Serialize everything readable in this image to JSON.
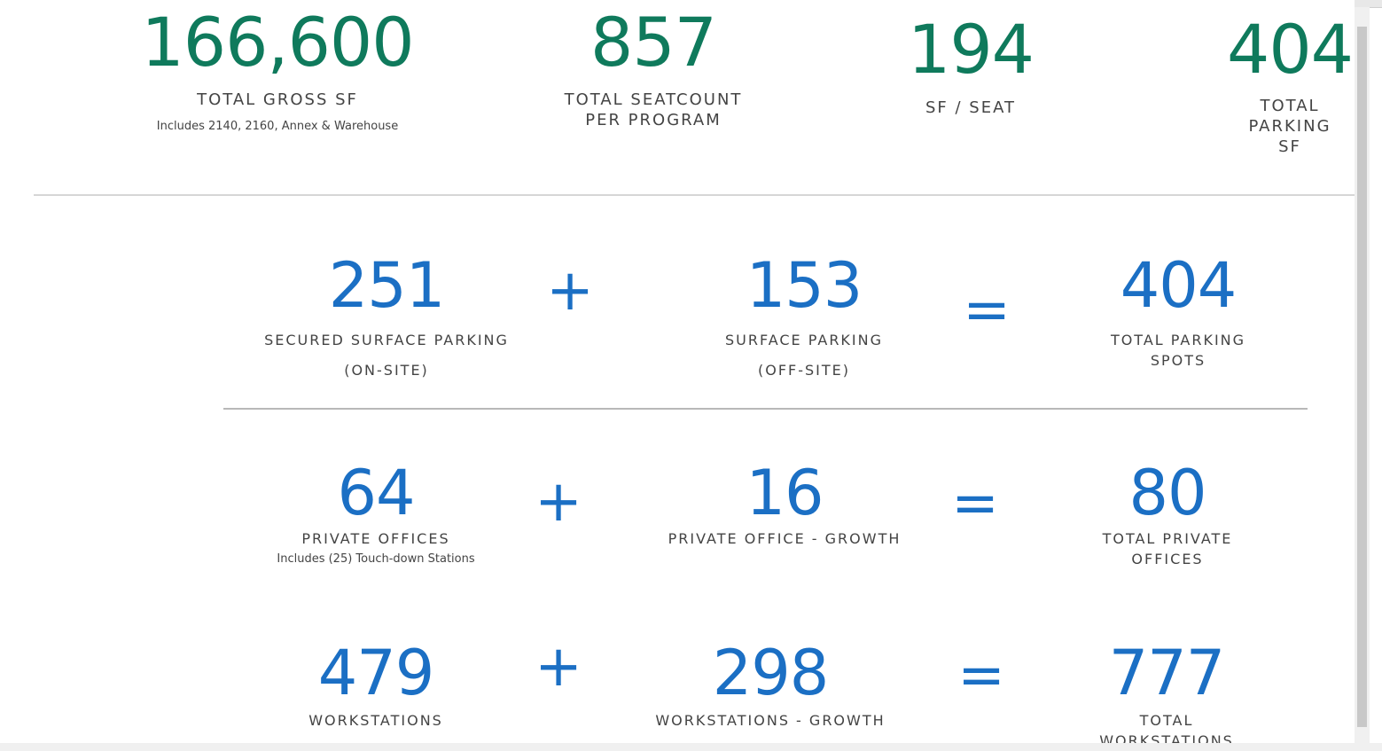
{
  "stats": [
    {
      "value": "166,600",
      "label": "TOTAL GROSS SF",
      "note": "Includes 2140, 2160, Annex & Warehouse"
    },
    {
      "value": "857",
      "label": "TOTAL SEATCOUNT\nPER PROGRAM"
    },
    {
      "value": "194",
      "label": "SF / SEAT"
    },
    {
      "value": "404",
      "label": "TOTAL PARKING SF"
    }
  ],
  "equations": [
    {
      "left": {
        "value": "251",
        "label": "SECURED SURFACE PARKING",
        "note": "(ON-SITE)"
      },
      "plus": "+",
      "right": {
        "value": "153",
        "label": "SURFACE PARKING",
        "note": "(OFF-SITE)"
      },
      "equals": "=",
      "total": {
        "value": "404",
        "label": "TOTAL PARKING SPOTS"
      }
    },
    {
      "left": {
        "value": "64",
        "label": "PRIVATE OFFICES",
        "note": "Includes (25) Touch-down Stations"
      },
      "plus": "+",
      "right": {
        "value": "16",
        "label": "PRIVATE OFFICE - GROWTH"
      },
      "equals": "=",
      "total": {
        "value": "80",
        "label": "TOTAL PRIVATE OFFICES"
      }
    },
    {
      "left": {
        "value": "479",
        "label": "WORKSTATIONS"
      },
      "plus": "+",
      "right": {
        "value": "298",
        "label": "WORKSTATIONS - GROWTH"
      },
      "equals": "=",
      "total": {
        "value": "777",
        "label": "TOTAL WORKSTATIONS"
      }
    }
  ]
}
